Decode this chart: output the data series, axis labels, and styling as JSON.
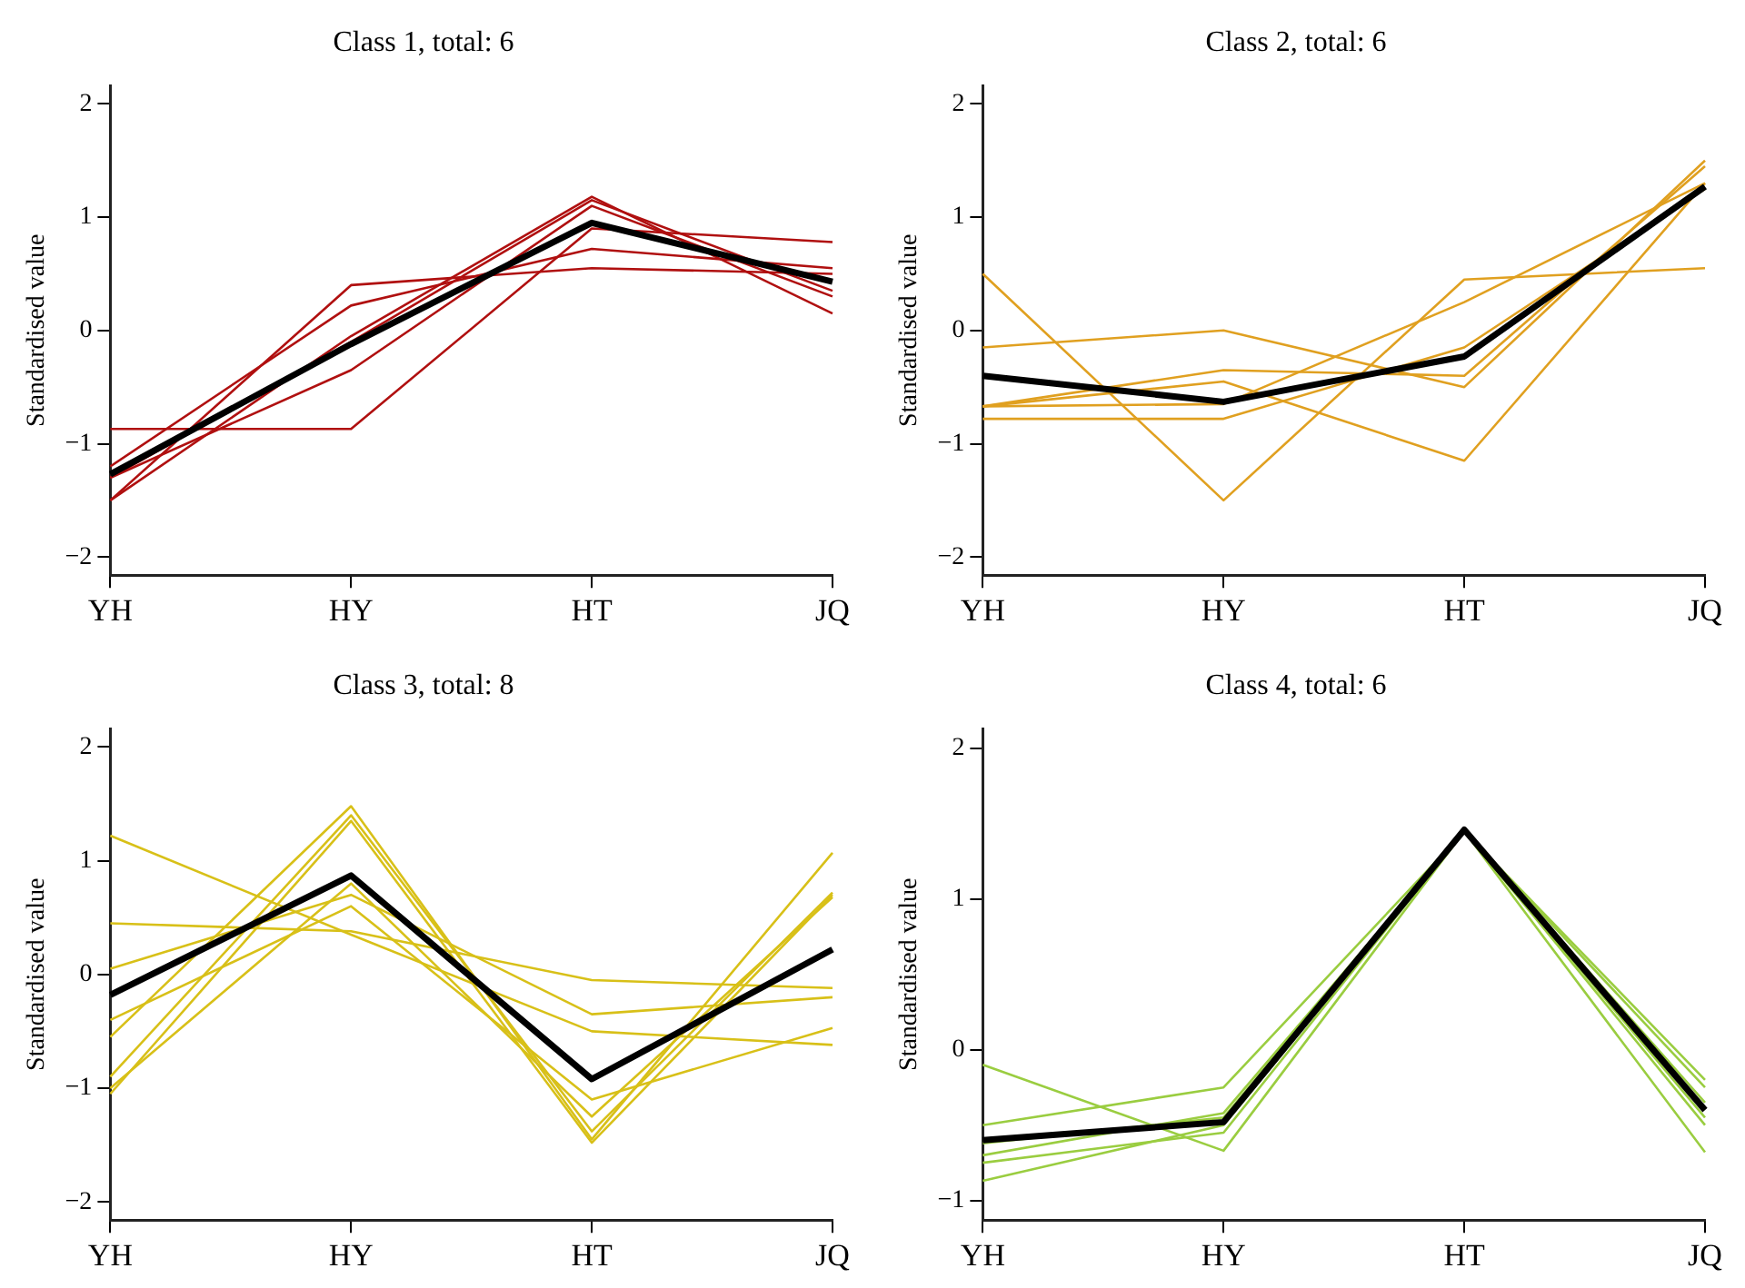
{
  "chart_data": [
    {
      "type": "line",
      "title": "Class 1, total: 6",
      "ylabel": "Standardised value",
      "categories": [
        "YH",
        "HY",
        "HT",
        "JQ"
      ],
      "ylim": [
        -2.16,
        2.16
      ],
      "yticks": [
        -2,
        -1,
        0,
        1,
        2
      ],
      "grid": false,
      "legend": false,
      "marker": "none",
      "series": [
        {
          "color": "#b01010",
          "values": [
            -0.87,
            -0.87,
            0.9,
            0.78
          ]
        },
        {
          "color": "#b01010",
          "values": [
            -1.5,
            0.4,
            0.55,
            0.5
          ]
        },
        {
          "color": "#b01010",
          "values": [
            -1.2,
            0.22,
            0.72,
            0.55
          ]
        },
        {
          "color": "#b01010",
          "values": [
            -1.5,
            -0.05,
            1.18,
            0.15
          ]
        },
        {
          "color": "#b01010",
          "values": [
            -1.3,
            -0.35,
            1.1,
            0.3
          ]
        },
        {
          "color": "#b01010",
          "values": [
            -1.3,
            -0.1,
            1.15,
            0.35
          ]
        },
        {
          "color": "#000000",
          "values": [
            -1.27,
            -0.12,
            0.95,
            0.43
          ]
        }
      ]
    },
    {
      "type": "line",
      "title": "Class 2, total: 6",
      "ylabel": "Standardised value",
      "categories": [
        "YH",
        "HY",
        "HT",
        "JQ"
      ],
      "ylim": [
        -2.16,
        2.16
      ],
      "yticks": [
        -2,
        -1,
        0,
        1,
        2
      ],
      "grid": false,
      "legend": false,
      "marker": "none",
      "series": [
        {
          "color": "#e0a020",
          "values": [
            0.5,
            -1.5,
            0.45,
            0.55
          ]
        },
        {
          "color": "#e0a020",
          "values": [
            -0.15,
            0,
            -0.5,
            1.5
          ]
        },
        {
          "color": "#e0a020",
          "values": [
            -0.67,
            -0.35,
            -0.4,
            1.45
          ]
        },
        {
          "color": "#e0a020",
          "values": [
            -0.67,
            -0.65,
            0.25,
            1.3
          ]
        },
        {
          "color": "#e0a020",
          "values": [
            -0.78,
            -0.78,
            -0.15,
            1.25
          ]
        },
        {
          "color": "#e0a020",
          "values": [
            -0.67,
            -0.45,
            -1.15,
            1.3
          ]
        },
        {
          "color": "#000000",
          "values": [
            -0.4,
            -0.63,
            -0.23,
            1.27
          ]
        }
      ]
    },
    {
      "type": "line",
      "title": "Class 3, total: 8",
      "ylabel": "Standardised value",
      "categories": [
        "YH",
        "HY",
        "HT",
        "JQ"
      ],
      "ylim": [
        -2.16,
        2.16
      ],
      "yticks": [
        -2,
        -1,
        0,
        1,
        2
      ],
      "grid": false,
      "legend": false,
      "marker": "none",
      "series": [
        {
          "color": "#d8c018",
          "values": [
            1.22,
            0.35,
            -0.5,
            -0.62
          ]
        },
        {
          "color": "#d8c018",
          "values": [
            0.45,
            0.38,
            -0.05,
            -0.12
          ]
        },
        {
          "color": "#d8c018",
          "values": [
            0.05,
            0.7,
            -0.35,
            -0.2
          ]
        },
        {
          "color": "#d8c018",
          "values": [
            -0.4,
            0.6,
            -1.1,
            -0.47
          ]
        },
        {
          "color": "#d8c018",
          "values": [
            -0.55,
            1.48,
            -1.45,
            1.07
          ]
        },
        {
          "color": "#d8c018",
          "values": [
            -0.9,
            1.4,
            -1.38,
            0.72
          ]
        },
        {
          "color": "#d8c018",
          "values": [
            -1.05,
            1.35,
            -1.48,
            0.7
          ]
        },
        {
          "color": "#d8c018",
          "values": [
            -1.0,
            0.8,
            -1.25,
            0.68
          ]
        },
        {
          "color": "#000000",
          "values": [
            -0.18,
            0.87,
            -0.92,
            0.22
          ]
        }
      ]
    },
    {
      "type": "line",
      "title": "Class 4, total: 6",
      "ylabel": "Standardised value",
      "categories": [
        "YH",
        "HY",
        "HT",
        "JQ"
      ],
      "ylim": [
        -1.13,
        2.13
      ],
      "yticks": [
        -1,
        0,
        1,
        2
      ],
      "grid": false,
      "legend": false,
      "marker": "none",
      "series": [
        {
          "color": "#9acd40",
          "values": [
            -0.1,
            -0.67,
            1.45,
            -0.2
          ]
        },
        {
          "color": "#9acd40",
          "values": [
            -0.5,
            -0.25,
            1.45,
            -0.25
          ]
        },
        {
          "color": "#9acd40",
          "values": [
            -0.7,
            -0.42,
            1.45,
            -0.45
          ]
        },
        {
          "color": "#9acd40",
          "values": [
            -0.75,
            -0.55,
            1.45,
            -0.5
          ]
        },
        {
          "color": "#9acd40",
          "values": [
            -0.87,
            -0.5,
            1.45,
            -0.68
          ]
        },
        {
          "color": "#9acd40",
          "values": [
            -0.62,
            -0.45,
            1.45,
            -0.35
          ]
        },
        {
          "color": "#000000",
          "values": [
            -0.6,
            -0.48,
            1.46,
            -0.4
          ]
        }
      ]
    }
  ]
}
